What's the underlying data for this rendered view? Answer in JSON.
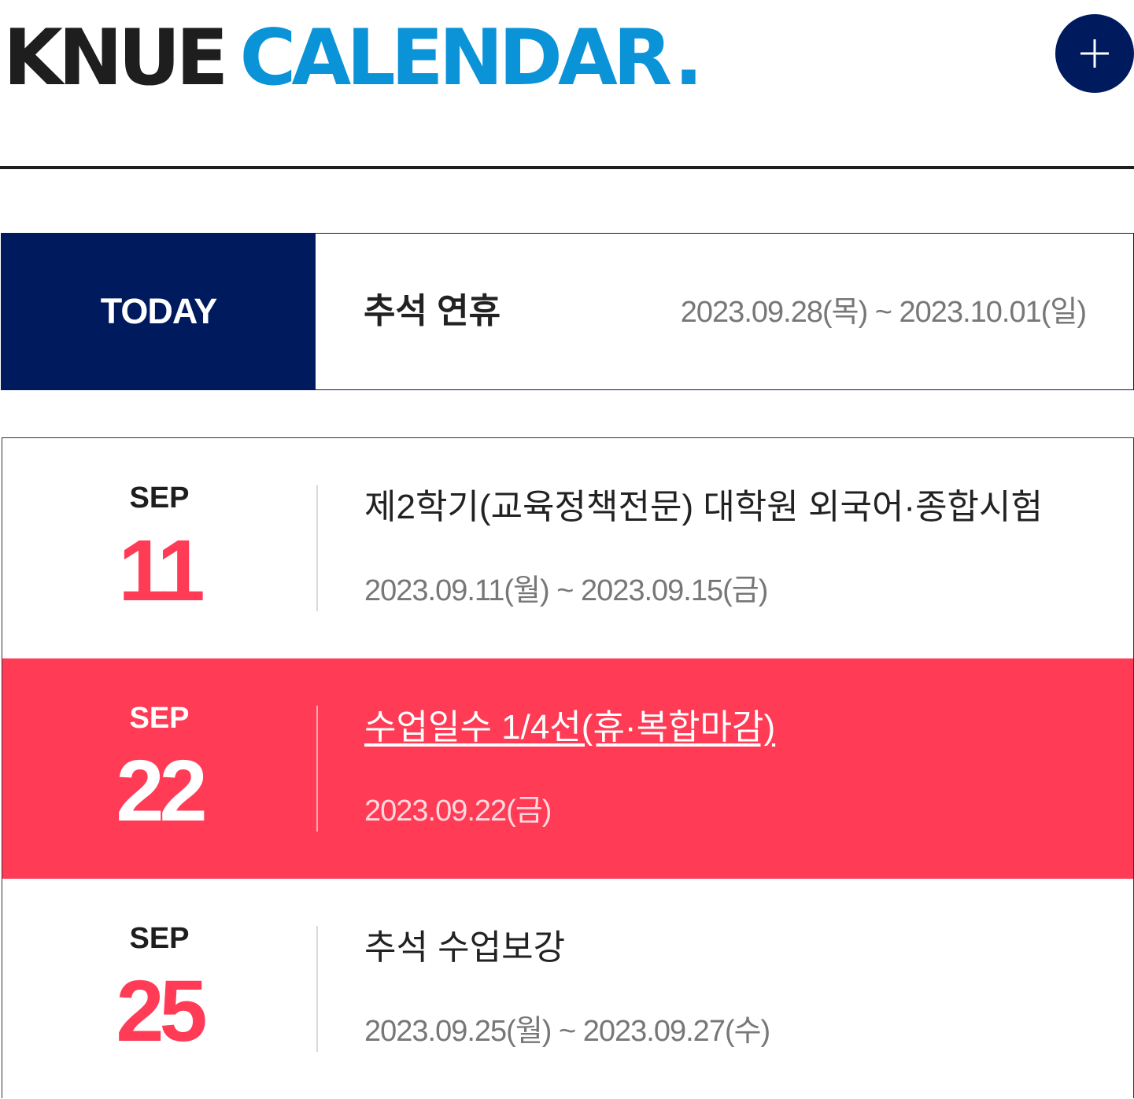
{
  "header": {
    "title_part1": "KNUE",
    "title_part2": "CALENDAR",
    "title_dot": ".",
    "more_button": "plus-icon"
  },
  "today": {
    "label": "TODAY",
    "title": "추석 연휴",
    "date": "2023.09.28(목) ~ 2023.10.01(일)"
  },
  "events": [
    {
      "month": "SEP",
      "day": "11",
      "title": "제2학기(교육정책전문) 대학원 외국어·종합시험",
      "date": "2023.09.11(월) ~ 2023.09.15(금)",
      "active": false
    },
    {
      "month": "SEP",
      "day": "22",
      "title": "수업일수 1/4선(휴·복합마감)",
      "date": "2023.09.22(금)",
      "active": true
    },
    {
      "month": "SEP",
      "day": "25",
      "title": "추석 수업보강",
      "date": "2023.09.25(월) ~ 2023.09.27(수)",
      "active": false
    }
  ],
  "colors": {
    "navy": "#001a5e",
    "accent_blue": "#0b93d8",
    "accent_red": "#ff3b55"
  }
}
